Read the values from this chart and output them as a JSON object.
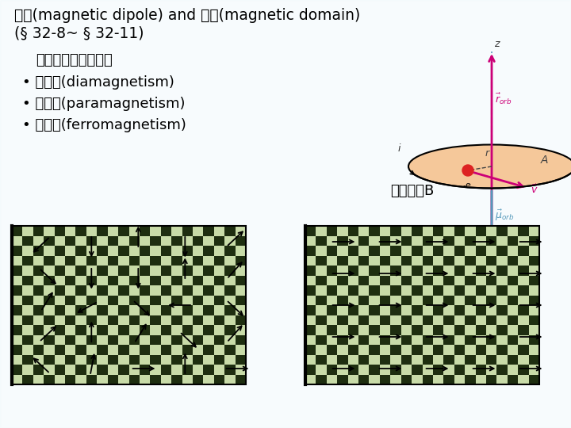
{
  "title_line1": "磁矩(magnetic dipole) and 磁域(magnetic domain)",
  "title_line2": "(§ 32-8~ § 32-11)",
  "subtitle": "磁性材料三種類型：",
  "bullets": [
    "• 反磁性(diamagnetism)",
    "• 順磁性(paramagnetism)",
    "• 鐵磁性(ferromagnetism)"
  ],
  "label_ext": "外加磁場B",
  "bg_color": "#ffffff",
  "text_color": "#000000",
  "title_fontsize": 13.5,
  "bullet_fontsize": 13,
  "subtitle_fontsize": 13,
  "orbit_ellipse_color": "#f5c89a",
  "orbit_ellipse_edge": "#000000",
  "axis_color_pink": "#cc0077",
  "axis_color_blue": "#5599bb",
  "electron_color": "#dd2222",
  "velocity_color": "#cc0077",
  "mu_color": "#5599bb",
  "domain_light": "#c8dba8",
  "domain_dark": "#1e2e10",
  "left_arrows_angles": [
    135,
    80,
    0,
    90,
    0,
    45,
    90,
    60,
    315,
    50,
    60,
    210,
    315,
    180,
    315,
    315,
    270,
    270,
    90,
    50,
    225,
    270,
    90,
    270,
    45
  ],
  "right_arrows_angles": [
    0,
    0,
    0,
    0,
    0,
    0,
    0,
    0,
    0,
    0,
    0,
    0,
    0,
    0,
    0,
    0,
    0,
    0,
    0,
    0,
    0,
    0,
    0,
    0,
    0
  ]
}
